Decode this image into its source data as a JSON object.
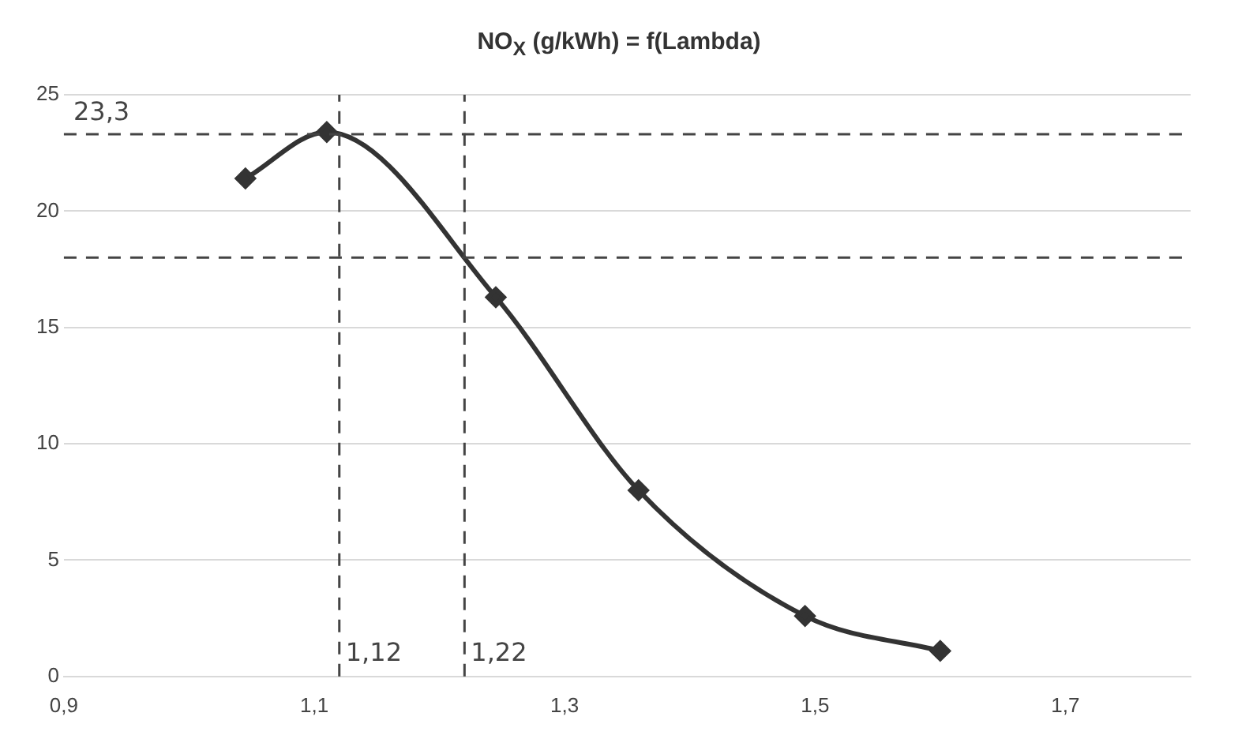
{
  "chart_data": {
    "type": "line",
    "title": "NO$_{X}$ (g/kWh) = f(Lambda)",
    "x": [
      1.045,
      1.11,
      1.245,
      1.359,
      1.492,
      1.6
    ],
    "series": [
      {
        "color": "#333333",
        "values": [
          21.4,
          23.4,
          16.3,
          8.0,
          2.6,
          1.1
        ]
      }
    ],
    "xlim": [
      0.9,
      1.8
    ],
    "xticks": [
      {
        "value": 0.9,
        "label": "0,9"
      },
      {
        "value": 1.1,
        "label": "1,1"
      },
      {
        "value": 1.3,
        "label": "1,3"
      },
      {
        "value": 1.5,
        "label": "1,5"
      },
      {
        "value": 1.7,
        "label": "1,7"
      }
    ],
    "ylim": [
      0,
      25
    ],
    "yticks": [
      0,
      5,
      10,
      15,
      20,
      25
    ],
    "ref_lines": [
      {
        "axis": "y",
        "value": 23.3,
        "label": "23,3",
        "line_style": "dashed",
        "color": "#444444"
      },
      {
        "axis": "y",
        "value": 18,
        "label": null,
        "line_style": "dashed",
        "color": "#444444"
      },
      {
        "axis": "x",
        "value": 1.12,
        "label": "1,12",
        "line_style": "dashed",
        "color": "#444444"
      },
      {
        "axis": "x",
        "value": 1.22,
        "label": "1,22",
        "line_style": "dashed",
        "color": "#444444"
      }
    ],
    "grid": "y",
    "legend": false,
    "marker": "diamond",
    "line_style": "solid"
  }
}
